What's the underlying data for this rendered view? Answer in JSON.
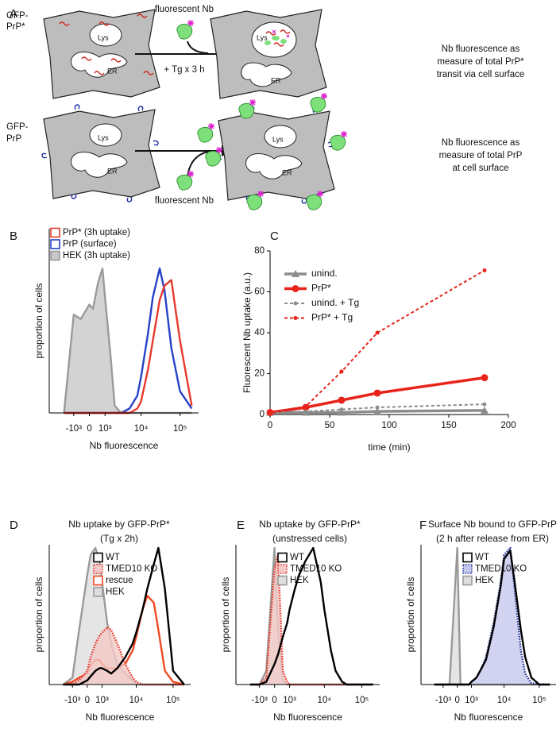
{
  "diagram": {
    "label": "A",
    "rows": [
      {
        "construct": [
          "GFP-",
          "PrP*"
        ],
        "lys": "Lys",
        "er": "ER",
        "reagent": "fluorescent Nb",
        "condition": "+ Tg x 3 h",
        "result": [
          "Nb fluorescence as",
          "measure of total PrP*",
          "transit via cell surface"
        ]
      },
      {
        "construct": [
          "GFP-",
          "PrP"
        ],
        "lys": "Lys",
        "er": "ER",
        "reagent": "fluorescent Nb",
        "result": [
          "Nb fluorescence as",
          "measure of total PrP",
          "at cell surface"
        ]
      }
    ]
  },
  "chart_data": [
    {
      "panel": "B",
      "type": "density",
      "xlabel": "Nb fluorescence",
      "ylabel": "proportion of cells",
      "xlim": [
        -5000,
        300000
      ],
      "ylim": [
        0,
        100
      ],
      "xticks": [
        {
          "value": -1000,
          "label": "-10³"
        },
        0,
        {
          "value": 1000,
          "label": "10³"
        },
        {
          "value": 10000,
          "label": "10⁴"
        },
        {
          "value": 100000,
          "label": "10⁵"
        }
      ],
      "x": [
        -2000,
        -1000,
        -500,
        0,
        200,
        500,
        800,
        1000,
        1500,
        2000,
        3000,
        5000,
        8000,
        10000,
        15000,
        20000,
        30000,
        40000,
        60000,
        100000,
        200000
      ],
      "series": [
        {
          "name": "PrP* (3h uptake)",
          "color": "#e8392c",
          "values": [
            0,
            0,
            0,
            0,
            0,
            0,
            0,
            0,
            0,
            0,
            0,
            0,
            3,
            8,
            30,
            50,
            78,
            88,
            92,
            50,
            5
          ]
        },
        {
          "name": "PrP (surface)",
          "color": "#2642c8",
          "values": [
            0,
            0,
            0,
            0,
            0,
            0,
            0,
            0,
            0,
            0,
            0,
            3,
            12,
            25,
            55,
            80,
            100,
            85,
            45,
            15,
            3
          ]
        },
        {
          "name": "HEK (3h uptake)",
          "color": "#9a9a9a",
          "fill": "#c8c8c8",
          "values": [
            0,
            68,
            65,
            75,
            72,
            90,
            100,
            80,
            40,
            5,
            0,
            0,
            0,
            0,
            0,
            0,
            0,
            0,
            0,
            0,
            0
          ]
        }
      ]
    },
    {
      "panel": "C",
      "type": "line",
      "xlabel": "time (min)",
      "ylabel": "Fluorescent Nb uptake (a.u.)",
      "x": [
        0,
        30,
        60,
        90,
        180
      ],
      "xlim": [
        0,
        200
      ],
      "ylim": [
        0,
        80
      ],
      "xticks": [
        0,
        50,
        100,
        150,
        200
      ],
      "yticks": [
        0,
        20,
        40,
        60,
        80
      ],
      "series": [
        {
          "name": "unind.",
          "color": "#8c8c8c",
          "linestyle": "solid",
          "marker": "triangle",
          "values": [
            1,
            1,
            1,
            1.5,
            2
          ]
        },
        {
          "name": "PrP*",
          "color": "#e8231c",
          "linestyle": "solid",
          "marker": "circle",
          "values": [
            1,
            3.5,
            7,
            10.5,
            18
          ]
        },
        {
          "name": "unind. + Tg",
          "color": "#8c8c8c",
          "linestyle": "dashed",
          "marker": "dot",
          "values": [
            1,
            1.5,
            2.5,
            3.5,
            5
          ]
        },
        {
          "name": "PrP* + Tg",
          "color": "#e8231c",
          "linestyle": "dashed",
          "marker": "dot",
          "values": [
            1,
            4,
            21,
            40,
            70.5
          ]
        }
      ]
    },
    {
      "panel": "D",
      "type": "density",
      "title": "Nb uptake by GFP-PrP*",
      "subtitle": "(Tg x 2h)",
      "xlabel": "Nb fluorescence",
      "ylabel": "proportion of cells",
      "xlim": [
        -5000,
        300000
      ],
      "ylim": [
        0,
        100
      ],
      "xticks": [
        {
          "value": -1000,
          "label": "-10³"
        },
        0,
        {
          "value": 1000,
          "label": "10³"
        },
        {
          "value": 10000,
          "label": "10⁴"
        },
        {
          "value": 100000,
          "label": "10⁵"
        }
      ],
      "x": [
        -2000,
        -1000,
        -500,
        0,
        200,
        500,
        800,
        1000,
        1500,
        2000,
        3000,
        5000,
        8000,
        10000,
        15000,
        20000,
        30000,
        40000,
        60000,
        100000,
        200000
      ],
      "series": [
        {
          "name": "WT",
          "color": "#000000",
          "values": [
            0,
            0,
            0,
            3,
            6,
            10,
            12,
            12,
            10,
            8,
            12,
            20,
            30,
            38,
            55,
            70,
            88,
            100,
            70,
            10,
            0
          ]
        },
        {
          "name": "TMED10 KO",
          "color": "#e8392c",
          "fill": "#f3c9c7",
          "linestyle": "dotted",
          "values": [
            0,
            0,
            3,
            10,
            20,
            30,
            36,
            38,
            42,
            40,
            30,
            15,
            5,
            2,
            0,
            0,
            0,
            0,
            0,
            0,
            0
          ]
        },
        {
          "name": "rescue",
          "color": "#f04a23",
          "values": [
            0,
            2,
            5,
            8,
            14,
            18,
            18,
            15,
            12,
            12,
            12,
            15,
            25,
            35,
            55,
            65,
            60,
            40,
            10,
            2,
            0
          ]
        },
        {
          "name": "HEK",
          "color": "#9a9a9a",
          "fill": "#dedede",
          "values": [
            0,
            5,
            40,
            80,
            95,
            100,
            90,
            75,
            45,
            30,
            15,
            8,
            3,
            0,
            0,
            0,
            0,
            0,
            0,
            0,
            0
          ]
        }
      ]
    },
    {
      "panel": "E",
      "type": "density",
      "title": "Nb uptake by GFP-PrP*",
      "subtitle": "(unstressed cells)",
      "xlabel": "Nb fluorescence",
      "ylabel": "proportion of cells",
      "xlim": [
        -5000,
        300000
      ],
      "ylim": [
        0,
        100
      ],
      "xticks": [
        {
          "value": -1000,
          "label": "-10³"
        },
        0,
        {
          "value": 1000,
          "label": "10³"
        },
        {
          "value": 10000,
          "label": "10⁴"
        },
        {
          "value": 100000,
          "label": "10⁵"
        }
      ],
      "x": [
        -2000,
        -1000,
        -500,
        0,
        200,
        500,
        800,
        1000,
        1500,
        2000,
        3000,
        5000,
        8000,
        10000,
        15000,
        20000,
        30000,
        40000,
        60000,
        100000,
        200000
      ],
      "series": [
        {
          "name": "WT",
          "color": "#000000",
          "values": [
            0,
            0,
            2,
            15,
            22,
            35,
            45,
            55,
            70,
            80,
            90,
            100,
            75,
            55,
            25,
            10,
            2,
            0,
            0,
            0,
            0
          ]
        },
        {
          "name": "TMED10 KO",
          "color": "#e8392c",
          "fill": "#f3c9c7",
          "linestyle": "dotted",
          "values": [
            0,
            0,
            5,
            85,
            95,
            10,
            2,
            0,
            0,
            0,
            0,
            0,
            0,
            0,
            0,
            0,
            0,
            0,
            0,
            0,
            0
          ]
        },
        {
          "name": "HEK",
          "color": "#9a9a9a",
          "fill": "#dedede",
          "values": [
            0,
            0,
            10,
            100,
            40,
            3,
            0,
            0,
            0,
            0,
            0,
            0,
            0,
            0,
            0,
            0,
            0,
            0,
            0,
            0,
            0
          ]
        }
      ]
    },
    {
      "panel": "F",
      "type": "density",
      "title": "Surface Nb bound to GFP-PrP",
      "subtitle": "(2 h after release from ER)",
      "xlabel": "Nb fluorescence",
      "ylabel": "proportion of cells",
      "xlim": [
        -5000,
        300000
      ],
      "ylim": [
        0,
        100
      ],
      "xticks": [
        {
          "value": -1000,
          "label": "-10³"
        },
        0,
        {
          "value": 1000,
          "label": "10³"
        },
        {
          "value": 10000,
          "label": "10⁴"
        },
        {
          "value": 100000,
          "label": "10⁵"
        }
      ],
      "x": [
        -2000,
        -1000,
        -500,
        0,
        200,
        500,
        800,
        1000,
        1500,
        2000,
        3000,
        5000,
        8000,
        10000,
        15000,
        20000,
        30000,
        40000,
        60000,
        100000,
        200000
      ],
      "series": [
        {
          "name": "WT",
          "color": "#000000",
          "values": [
            0,
            0,
            0,
            0,
            0,
            0,
            0,
            2,
            5,
            10,
            18,
            42,
            72,
            92,
            98,
            75,
            40,
            20,
            5,
            0,
            0
          ]
        },
        {
          "name": "TMED10 KO",
          "color": "#2b3a9a",
          "fill": "#c5c8ee",
          "linestyle": "dotted",
          "values": [
            0,
            0,
            0,
            0,
            0,
            0,
            0,
            2,
            5,
            10,
            20,
            45,
            75,
            95,
            100,
            70,
            25,
            8,
            1,
            0,
            0
          ]
        },
        {
          "name": "HEK",
          "color": "#9a9a9a",
          "fill": "#dedede",
          "values": [
            0,
            0,
            0,
            100,
            0,
            0,
            0,
            0,
            0,
            0,
            0,
            0,
            0,
            0,
            0,
            0,
            0,
            0,
            0,
            0,
            0
          ]
        }
      ]
    }
  ]
}
